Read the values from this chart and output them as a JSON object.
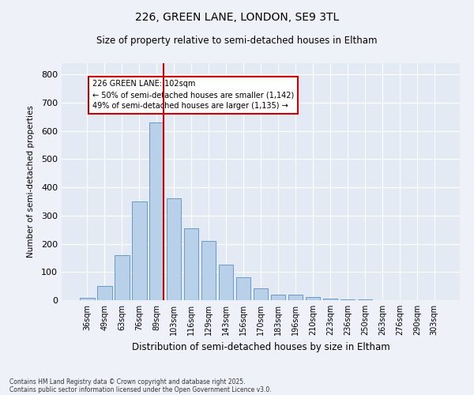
{
  "title1": "226, GREEN LANE, LONDON, SE9 3TL",
  "title2": "Size of property relative to semi-detached houses in Eltham",
  "xlabel": "Distribution of semi-detached houses by size in Eltham",
  "ylabel": "Number of semi-detached properties",
  "categories": [
    "36sqm",
    "49sqm",
    "63sqm",
    "76sqm",
    "89sqm",
    "103sqm",
    "116sqm",
    "129sqm",
    "143sqm",
    "156sqm",
    "170sqm",
    "183sqm",
    "196sqm",
    "210sqm",
    "223sqm",
    "236sqm",
    "250sqm",
    "263sqm",
    "276sqm",
    "290sqm",
    "303sqm"
  ],
  "values": [
    8,
    50,
    160,
    350,
    630,
    360,
    255,
    210,
    125,
    80,
    42,
    20,
    20,
    10,
    5,
    3,
    2,
    0,
    0,
    1,
    0
  ],
  "bar_color": "#b8d0e8",
  "bar_edge_color": "#6699cc",
  "vline_color": "#cc0000",
  "annotation_text": "226 GREEN LANE: 102sqm\n← 50% of semi-detached houses are smaller (1,142)\n49% of semi-detached houses are larger (1,135) →",
  "annotation_box_color": "#ffffff",
  "annotation_box_edge": "#cc0000",
  "ylim": [
    0,
    840
  ],
  "yticks": [
    0,
    100,
    200,
    300,
    400,
    500,
    600,
    700,
    800
  ],
  "footer1": "Contains HM Land Registry data © Crown copyright and database right 2025.",
  "footer2": "Contains public sector information licensed under the Open Government Licence v3.0.",
  "bg_color": "#eef2f8",
  "plot_bg_color": "#e4eaf4"
}
